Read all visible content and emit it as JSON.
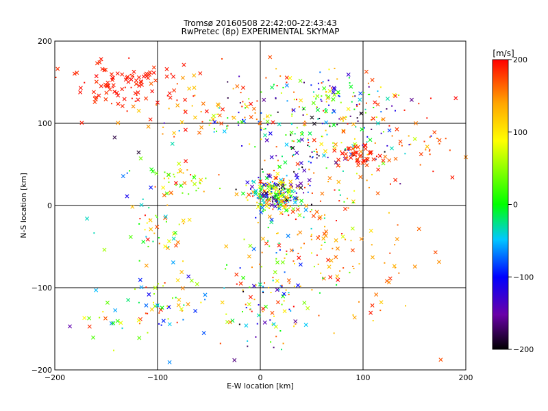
{
  "chart_data": {
    "type": "scatter",
    "title": "Tromsø 20160508 22:42:00-22:43:43",
    "subtitle": "RwPretec (8p) EXPERIMENTAL SKYMAP",
    "xlabel": "E-W location [km]",
    "ylabel": "N-S location [km]",
    "xlim": [
      -200,
      200
    ],
    "ylim": [
      -200,
      200
    ],
    "x_ticks": [
      -200,
      -100,
      0,
      100,
      200
    ],
    "y_ticks": [
      -200,
      -100,
      0,
      100,
      200
    ],
    "grid": "lines at -100, 0, 100 on both axes",
    "colorbar": {
      "label": "[m/s]",
      "range": [
        -200,
        200
      ],
      "ticks": [
        200,
        100,
        0,
        -100,
        -200
      ],
      "colormap": [
        "#000000",
        "#6a00a8",
        "#0000ff",
        "#00c8ff",
        "#00ff00",
        "#ffff00",
        "#ffa500",
        "#ff0000"
      ]
    },
    "markers": {
      "cross": "x",
      "dot": "small dot"
    },
    "clusters": [
      {
        "cx": -130,
        "cy": 145,
        "sx": 25,
        "sy": 14,
        "n": 95,
        "vmin": 180,
        "vmax": 200,
        "cross": 0.75
      },
      {
        "cx": -60,
        "cy": 125,
        "sx": 35,
        "sy": 20,
        "n": 55,
        "vmin": 120,
        "vmax": 200,
        "cross": 0.6
      },
      {
        "cx": 60,
        "cy": 130,
        "sx": 35,
        "sy": 18,
        "n": 120,
        "vmin": -200,
        "vmax": 200,
        "cross": 0.3
      },
      {
        "cx": 70,
        "cy": 75,
        "sx": 40,
        "sy": 25,
        "n": 190,
        "vmin": -200,
        "vmax": 200,
        "cross": 0.3
      },
      {
        "cx": 95,
        "cy": 60,
        "sx": 12,
        "sy": 7,
        "n": 45,
        "vmin": 170,
        "vmax": 200,
        "cross": 0.7
      },
      {
        "cx": 15,
        "cy": 15,
        "sx": 14,
        "sy": 12,
        "n": 230,
        "vmin": -200,
        "vmax": 200,
        "cross": 0.55
      },
      {
        "cx": -20,
        "cy": 100,
        "sx": 25,
        "sy": 8,
        "n": 40,
        "vmin": -150,
        "vmax": 200,
        "cross": 0.4
      },
      {
        "cx": -75,
        "cy": 28,
        "sx": 15,
        "sy": 10,
        "n": 45,
        "vmin": 0,
        "vmax": 200,
        "cross": 0.4
      },
      {
        "cx": -100,
        "cy": -30,
        "sx": 15,
        "sy": 20,
        "n": 40,
        "vmin": -50,
        "vmax": 200,
        "cross": 0.4
      },
      {
        "cx": -95,
        "cy": -120,
        "sx": 25,
        "sy": 25,
        "n": 60,
        "vmin": -120,
        "vmax": 200,
        "cross": 0.4
      },
      {
        "cx": 0,
        "cy": -110,
        "sx": 25,
        "sy": 30,
        "n": 85,
        "vmin": -200,
        "vmax": 200,
        "cross": 0.35
      },
      {
        "cx": 65,
        "cy": -40,
        "sx": 40,
        "sy": 35,
        "n": 95,
        "vmin": 100,
        "vmax": 200,
        "cross": 0.4
      },
      {
        "cx": 30,
        "cy": -40,
        "sx": 30,
        "sy": 40,
        "n": 60,
        "vmin": -100,
        "vmax": 200,
        "cross": 0.3
      },
      {
        "cx": 150,
        "cy": 80,
        "sx": 30,
        "sy": 30,
        "n": 40,
        "vmin": 150,
        "vmax": 200,
        "cross": 0.5
      },
      {
        "cx": -150,
        "cy": -140,
        "sx": 15,
        "sy": 15,
        "n": 15,
        "vmin": -150,
        "vmax": 200,
        "cross": 0.6
      },
      {
        "cx": -130,
        "cy": 20,
        "sx": 40,
        "sy": 40,
        "n": 20,
        "vmin": -200,
        "vmax": 200,
        "cross": 0.5
      },
      {
        "cx": 110,
        "cy": -100,
        "sx": 25,
        "sy": 30,
        "n": 20,
        "vmin": 100,
        "vmax": 200,
        "cross": 0.4
      }
    ]
  }
}
